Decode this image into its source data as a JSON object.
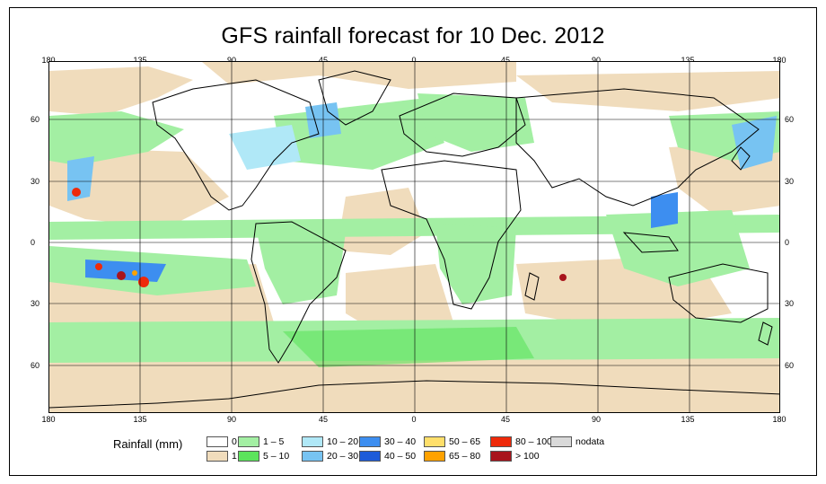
{
  "title": "GFS rainfall forecast for 10 Dec. 2012",
  "axes": {
    "lon_labels": [
      "180",
      "135",
      "90",
      "45",
      "0",
      "45",
      "90",
      "135",
      "180"
    ],
    "lat_labels": [
      "60",
      "30",
      "0",
      "30",
      "60"
    ]
  },
  "legend": {
    "title": "Rainfall (mm)",
    "items": [
      {
        "label": "0",
        "color": "#ffffff"
      },
      {
        "label": "1",
        "color": "#f0dcbc"
      },
      {
        "label": "1 – 5",
        "color": "#a3efa3"
      },
      {
        "label": "5 – 10",
        "color": "#5ce35c"
      },
      {
        "label": "10 – 20",
        "color": "#b0e8f7"
      },
      {
        "label": "20 – 30",
        "color": "#77c3f2"
      },
      {
        "label": "30 – 40",
        "color": "#3d8ef0"
      },
      {
        "label": "40 – 50",
        "color": "#1e5bd9"
      },
      {
        "label": "50 – 65",
        "color": "#ffdf6b"
      },
      {
        "label": "65 – 80",
        "color": "#ffa200"
      },
      {
        "label": "80 – 100",
        "color": "#ee2a0a"
      },
      {
        "label": "> 100",
        "color": "#a8141c"
      },
      {
        "label": "nodata",
        "color": "#d9d9d9"
      }
    ]
  }
}
